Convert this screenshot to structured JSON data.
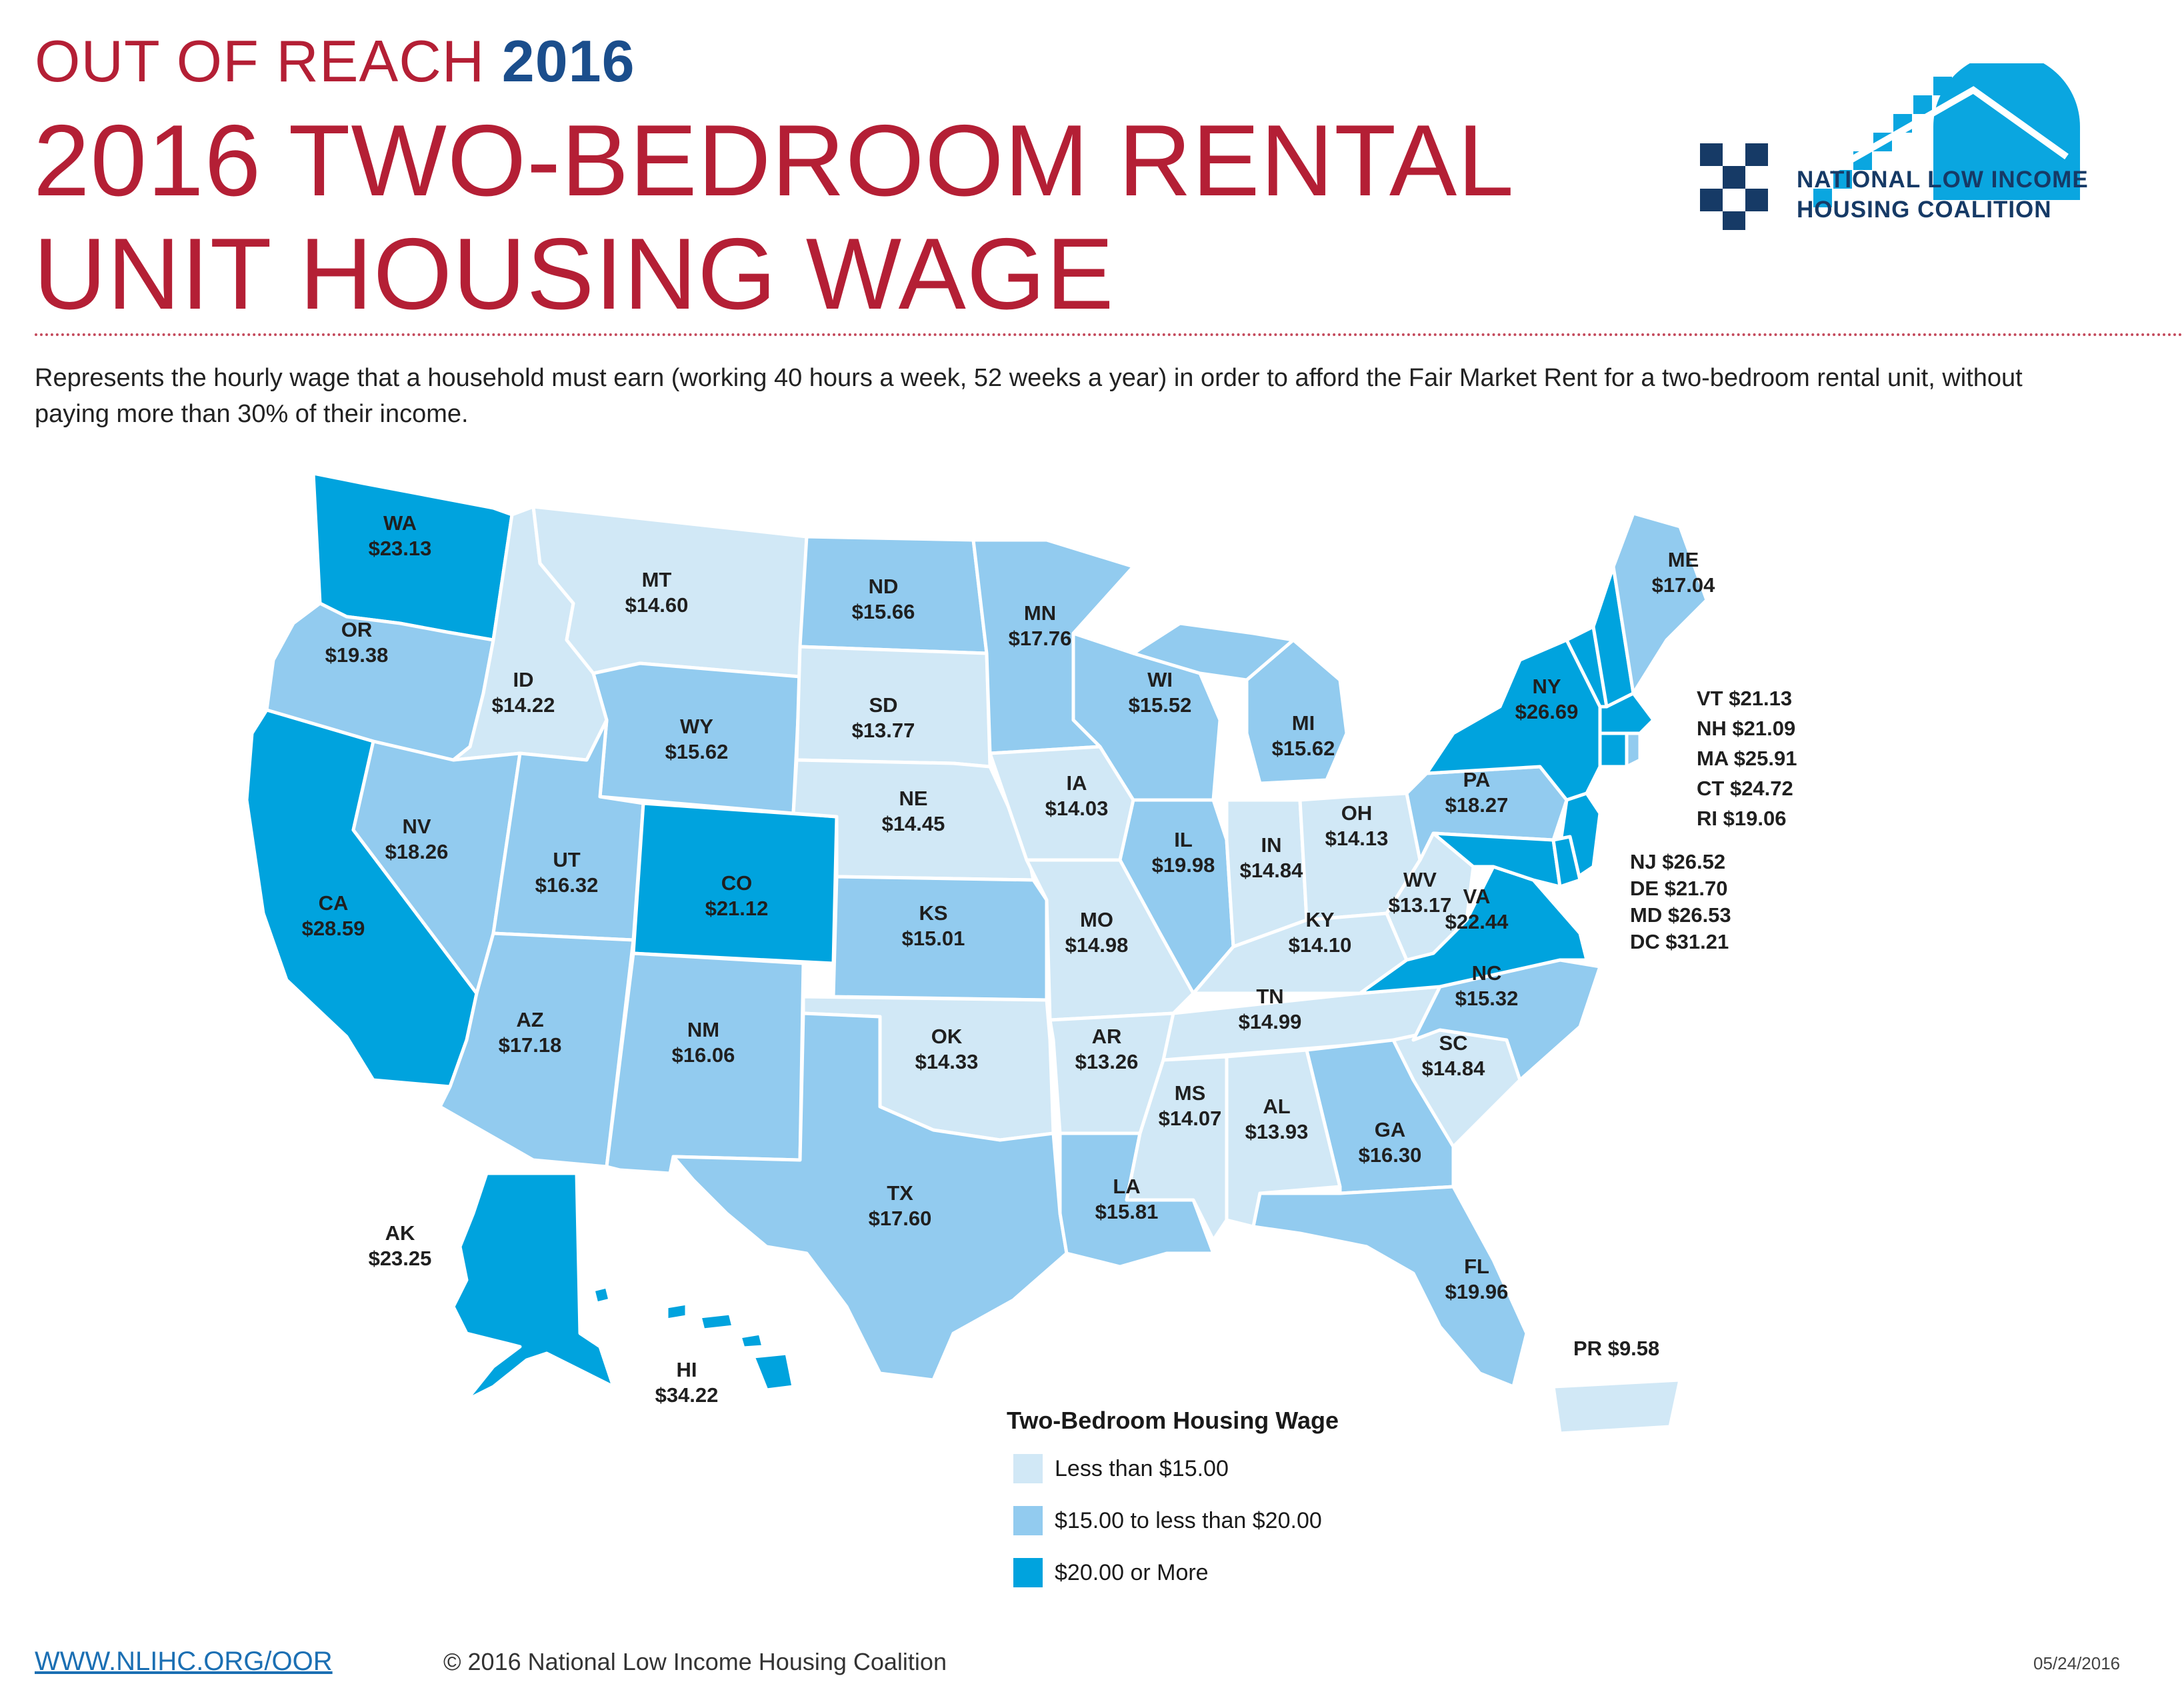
{
  "header": {
    "kicker_light": "OUT OF REACH",
    "kicker_bold": "2016",
    "title_line1": "2016 TWO-BEDROOM RENTAL",
    "title_line2": "UNIT HOUSING WAGE",
    "description": "Represents the hourly wage that a household must earn (working 40 hours a week, 52 weeks a year) in order to afford the Fair Market Rent for a two-bedroom rental unit, without paying more than 30% of their income."
  },
  "logo": {
    "line1": "NATIONAL LOW INCOME",
    "line2": "HOUSING COALITION",
    "colors": {
      "navy": "#163a66",
      "sky": "#0aa6e0"
    }
  },
  "colors": {
    "tier_low": "#d1e8f6",
    "tier_mid": "#92cbef",
    "tier_high": "#00a3de",
    "title_red": "#b41f35",
    "title_blue": "#1b4e8c"
  },
  "states": {
    "WA": {
      "abbr": "WA",
      "wage": "$23.13",
      "tier": "high"
    },
    "OR": {
      "abbr": "OR",
      "wage": "$19.38",
      "tier": "mid"
    },
    "CA": {
      "abbr": "CA",
      "wage": "$28.59",
      "tier": "high"
    },
    "ID": {
      "abbr": "ID",
      "wage": "$14.22",
      "tier": "low"
    },
    "NV": {
      "abbr": "NV",
      "wage": "$18.26",
      "tier": "mid"
    },
    "MT": {
      "abbr": "MT",
      "wage": "$14.60",
      "tier": "low"
    },
    "WY": {
      "abbr": "WY",
      "wage": "$15.62",
      "tier": "mid"
    },
    "UT": {
      "abbr": "UT",
      "wage": "$16.32",
      "tier": "mid"
    },
    "AZ": {
      "abbr": "AZ",
      "wage": "$17.18",
      "tier": "mid"
    },
    "CO": {
      "abbr": "CO",
      "wage": "$21.12",
      "tier": "high"
    },
    "NM": {
      "abbr": "NM",
      "wage": "$16.06",
      "tier": "mid"
    },
    "ND": {
      "abbr": "ND",
      "wage": "$15.66",
      "tier": "mid"
    },
    "SD": {
      "abbr": "SD",
      "wage": "$13.77",
      "tier": "low"
    },
    "NE": {
      "abbr": "NE",
      "wage": "$14.45",
      "tier": "low"
    },
    "KS": {
      "abbr": "KS",
      "wage": "$15.01",
      "tier": "mid"
    },
    "OK": {
      "abbr": "OK",
      "wage": "$14.33",
      "tier": "low"
    },
    "TX": {
      "abbr": "TX",
      "wage": "$17.60",
      "tier": "mid"
    },
    "MN": {
      "abbr": "MN",
      "wage": "$17.76",
      "tier": "mid"
    },
    "IA": {
      "abbr": "IA",
      "wage": "$14.03",
      "tier": "low"
    },
    "MO": {
      "abbr": "MO",
      "wage": "$14.98",
      "tier": "low"
    },
    "AR": {
      "abbr": "AR",
      "wage": "$13.26",
      "tier": "low"
    },
    "LA": {
      "abbr": "LA",
      "wage": "$15.81",
      "tier": "mid"
    },
    "WI": {
      "abbr": "WI",
      "wage": "$15.52",
      "tier": "mid"
    },
    "IL": {
      "abbr": "IL",
      "wage": "$19.98",
      "tier": "mid"
    },
    "MI": {
      "abbr": "MI",
      "wage": "$15.62",
      "tier": "mid"
    },
    "IN": {
      "abbr": "IN",
      "wage": "$14.84",
      "tier": "low"
    },
    "OH": {
      "abbr": "OH",
      "wage": "$14.13",
      "tier": "low"
    },
    "KY": {
      "abbr": "KY",
      "wage": "$14.10",
      "tier": "low"
    },
    "TN": {
      "abbr": "TN",
      "wage": "$14.99",
      "tier": "low"
    },
    "MS": {
      "abbr": "MS",
      "wage": "$14.07",
      "tier": "low"
    },
    "AL": {
      "abbr": "AL",
      "wage": "$13.93",
      "tier": "low"
    },
    "GA": {
      "abbr": "GA",
      "wage": "$16.30",
      "tier": "mid"
    },
    "FL": {
      "abbr": "FL",
      "wage": "$19.96",
      "tier": "mid"
    },
    "SC": {
      "abbr": "SC",
      "wage": "$14.84",
      "tier": "low"
    },
    "NC": {
      "abbr": "NC",
      "wage": "$15.32",
      "tier": "mid"
    },
    "VA": {
      "abbr": "VA",
      "wage": "$22.44",
      "tier": "high"
    },
    "WV": {
      "abbr": "WV",
      "wage": "$13.17",
      "tier": "low"
    },
    "PA": {
      "abbr": "PA",
      "wage": "$18.27",
      "tier": "mid"
    },
    "NY": {
      "abbr": "NY",
      "wage": "$26.69",
      "tier": "high"
    },
    "ME": {
      "abbr": "ME",
      "wage": "$17.04",
      "tier": "mid"
    },
    "AK": {
      "abbr": "AK",
      "wage": "$23.25",
      "tier": "high"
    },
    "HI": {
      "abbr": "HI",
      "wage": "$34.22",
      "tier": "high"
    },
    "PR": {
      "abbr": "PR",
      "wage": "$9.58",
      "tier": "low"
    },
    "VT": {
      "abbr": "VT",
      "wage": "$21.13",
      "tier": "high"
    },
    "NH": {
      "abbr": "NH",
      "wage": "$21.09",
      "tier": "high"
    },
    "MA": {
      "abbr": "MA",
      "wage": "$25.91",
      "tier": "high"
    },
    "CT": {
      "abbr": "CT",
      "wage": "$24.72",
      "tier": "high"
    },
    "RI": {
      "abbr": "RI",
      "wage": "$19.06",
      "tier": "mid"
    },
    "NJ": {
      "abbr": "NJ",
      "wage": "$26.52",
      "tier": "high"
    },
    "DE": {
      "abbr": "DE",
      "wage": "$21.70",
      "tier": "high"
    },
    "MD": {
      "abbr": "MD",
      "wage": "$26.53",
      "tier": "high"
    },
    "DC": {
      "abbr": "DC",
      "wage": "$31.21",
      "tier": "high"
    }
  },
  "legend": {
    "title": "Two-Bedroom Housing Wage",
    "items": [
      {
        "label": "Less than $15.00",
        "tier": "low"
      },
      {
        "label": "$15.00 to less than $20.00",
        "tier": "mid"
      },
      {
        "label": "$20.00 or More",
        "tier": "high"
      }
    ]
  },
  "footer": {
    "url": "WWW.NLIHC.ORG/OOR",
    "copyright": "© 2016 National Low Income Housing Coalition",
    "date": "05/24/2016"
  }
}
